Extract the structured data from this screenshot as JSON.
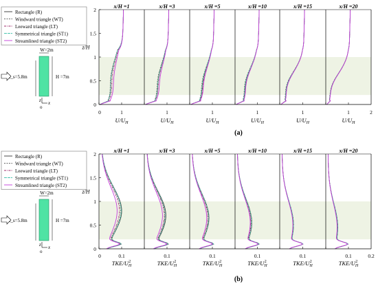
{
  "chart_data": [
    {
      "type": "line",
      "panel_label": "(a)",
      "panel_titles": [
        "x/H =1",
        "x/H =3",
        "x/H =5",
        "x/H =10",
        "x/H =15",
        "x/H =20"
      ],
      "xlabel": "U/U_H",
      "ylabel": "z/H",
      "xlim": [
        0,
        2
      ],
      "ylim": [
        0,
        2
      ],
      "x_ticks": [
        "0",
        "1",
        "2"
      ],
      "y_ticks": [
        "0",
        "0.5",
        "1",
        "1.5",
        "2"
      ],
      "shaded_band_z": [
        0.2,
        1.0
      ],
      "series_colors": [
        "#333333",
        "#666666",
        "#9c2a6a",
        "#48c4ae",
        "#c43cd8"
      ],
      "curve_params": [
        {
          "min": [
            0.5,
            0.52,
            0.45,
            0.5,
            0.38
          ],
          "z": 0.5,
          "w": 0.5
        },
        {
          "min": [
            0.42,
            0.45,
            0.4,
            0.42,
            0.35
          ],
          "z": 0.45,
          "w": 0.42
        },
        {
          "min": [
            0.45,
            0.48,
            0.42,
            0.46,
            0.4
          ],
          "z": 0.42,
          "w": 0.4
        },
        {
          "min": [
            0.55,
            0.58,
            0.52,
            0.56,
            0.52
          ],
          "z": 0.4,
          "w": 0.38
        },
        {
          "min": [
            0.7,
            0.72,
            0.68,
            0.7,
            0.68
          ],
          "z": 0.35,
          "w": 0.35
        },
        {
          "min": [
            0.75,
            0.76,
            0.74,
            0.75,
            0.74
          ],
          "z": 0.32,
          "w": 0.35
        }
      ],
      "legend": [
        "Rectangle (R)",
        "Windward triangle (WT)",
        "Leeward triangle (LT)",
        "Symmetrical triangle (ST1)",
        "Streamlined triangle (ST2)"
      ],
      "inset": {
        "w_label": "W=2m",
        "h_label": "H =7m",
        "hs_label": "H_s=5.8m",
        "z_axis": "z",
        "x_axis": "x",
        "origin": "o"
      }
    },
    {
      "type": "line",
      "panel_label": "(b)",
      "panel_titles": [
        "x/H =1",
        "x/H =3",
        "x/H =5",
        "x/H =10",
        "x/H =15",
        "x/H =20"
      ],
      "xlabel": "TKE/U_H^2",
      "ylabel": "z/H",
      "xlim": [
        0,
        0.2
      ],
      "ylim": [
        0,
        2
      ],
      "x_ticks": [
        "0",
        "0.1",
        "0.2"
      ],
      "y_ticks": [
        "0",
        "0.5",
        "1",
        "1.5",
        "2"
      ],
      "shaded_band_z": [
        0.2,
        1.0
      ],
      "series_colors": [
        "#333333",
        "#666666",
        "#9c2a6a",
        "#48c4ae",
        "#c43cd8"
      ],
      "curve_params": [
        {
          "peak": [
            0.09,
            0.085,
            0.08,
            0.088,
            0.07
          ],
          "z": 0.8,
          "w": 0.5
        },
        {
          "peak": [
            0.085,
            0.08,
            0.078,
            0.082,
            0.07
          ],
          "z": 0.7,
          "w": 0.5
        },
        {
          "peak": [
            0.075,
            0.072,
            0.07,
            0.074,
            0.065
          ],
          "z": 0.65,
          "w": 0.5
        },
        {
          "peak": [
            0.065,
            0.062,
            0.06,
            0.064,
            0.058
          ],
          "z": 0.55,
          "w": 0.5
        },
        {
          "peak": [
            0.05,
            0.049,
            0.048,
            0.05,
            0.047
          ],
          "z": 0.5,
          "w": 0.5
        },
        {
          "peak": [
            0.043,
            0.042,
            0.041,
            0.043,
            0.04
          ],
          "z": 0.45,
          "w": 0.5
        }
      ],
      "legend": [
        "Rectangle (R)",
        "Windward triangle (WT)",
        "Leeward triangle (LT)",
        "Symmetrical triangle (ST1)",
        "Streamlined triangle (ST2)"
      ],
      "inset": {
        "w_label": "W=2m",
        "h_label": "H =7m",
        "hs_label": "H_s=5.8m",
        "z_axis": "z",
        "x_axis": "x",
        "origin": "o"
      }
    }
  ]
}
